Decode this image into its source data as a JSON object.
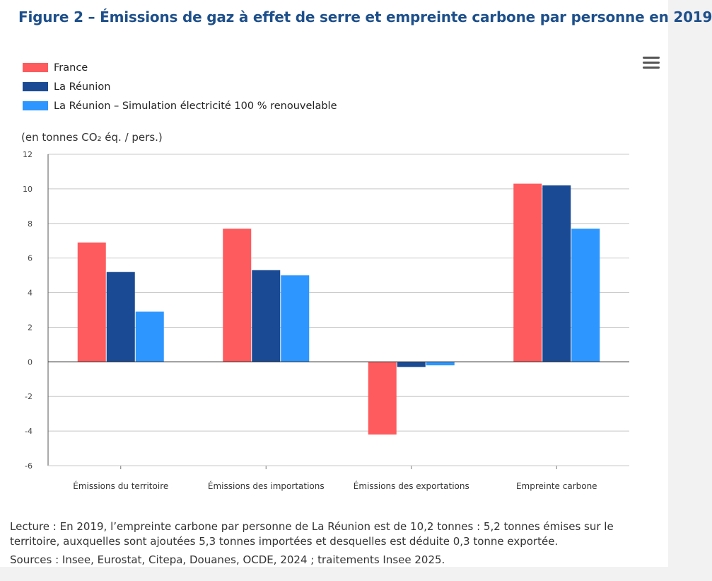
{
  "title": "Figure 2 – Émissions de gaz à effet de serre et empreinte carbone par personne en 2019",
  "unit_label": "(en tonnes CO₂ éq. / pers.)",
  "menu": {
    "icon": "hamburger-menu-icon"
  },
  "footnote": {
    "lecture": "Lecture : En 2019, l’empreinte carbone par personne de La Réunion est de 10,2 tonnes : 5,2 tonnes émises sur le territoire, auxquelles sont ajoutées 5,3 tonnes importées et desquelles est déduite 0,3 tonne exportée.",
    "sources": "Sources : Insee, Eurostat, Citepa, Douanes, OCDE, 2024 ; traitements Insee 2025."
  },
  "chart_data": {
    "type": "bar",
    "title": "Figure 2 – Émissions de gaz à effet de serre et empreinte carbone par personne en 2019",
    "ylabel": "(en tonnes CO₂ éq. / pers.)",
    "xlabel": "",
    "ylim": [
      -6,
      12
    ],
    "yticks": [
      -6,
      -4,
      -2,
      0,
      2,
      4,
      6,
      8,
      10,
      12
    ],
    "grid": true,
    "legend_position": "top-left",
    "categories": [
      "Émissions du territoire",
      "Émissions des importations",
      "Émissions des exportations",
      "Empreinte carbone"
    ],
    "series": [
      {
        "name": "France",
        "color": "#fe5b5e",
        "values": [
          6.9,
          7.7,
          -4.2,
          10.3
        ]
      },
      {
        "name": "La Réunion",
        "color": "#1a4a93",
        "values": [
          5.2,
          5.3,
          -0.3,
          10.2
        ]
      },
      {
        "name": "La Réunion – Simulation électricité 100 % renouvelable",
        "color": "#2d96ff",
        "values": [
          2.9,
          5.0,
          -0.2,
          7.7
        ]
      }
    ]
  }
}
